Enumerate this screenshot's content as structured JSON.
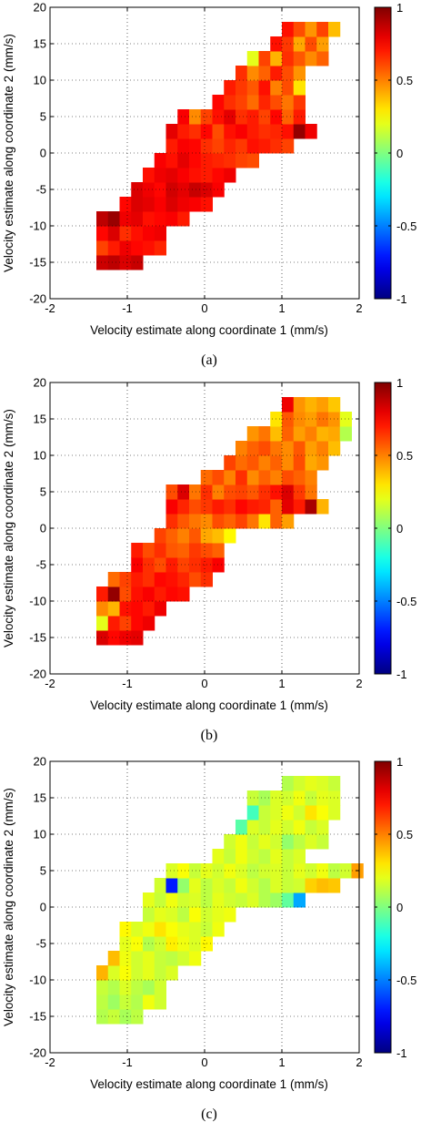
{
  "chart_data": [
    {
      "type": "heatmap",
      "panel_label": "(a)",
      "xlabel": "Velocity estimate along coordinate 1 (mm/s)",
      "ylabel": "Velocity estimate along coordinate 2 (mm/s)",
      "xlim": [
        -2,
        2
      ],
      "ylim": [
        -20,
        20
      ],
      "xticks": [
        "-2",
        "-1",
        "0",
        "1",
        "2"
      ],
      "yticks": [
        "-20",
        "-15",
        "-10",
        "-5",
        "0",
        "5",
        "10",
        "15",
        "20"
      ],
      "colorbar": {
        "colormap": "jet",
        "range": [
          -1,
          1
        ],
        "ticks": [
          "1",
          "0.5",
          "0",
          "-0.5",
          "-1"
        ]
      },
      "grid": true,
      "cell_width": 0.15,
      "cell_height": 2.0,
      "rows": [
        {
          "y": -15.0,
          "x_start": -1.4,
          "values": [
            0.85,
            0.88,
            0.82,
            0.86
          ]
        },
        {
          "y": -13.0,
          "x_start": -1.4,
          "values": [
            0.62,
            0.7,
            0.78,
            0.74,
            0.72,
            0.68
          ]
        },
        {
          "y": -11.0,
          "x_start": -1.4,
          "values": [
            0.74,
            0.82,
            0.66,
            0.72,
            0.76,
            0.78
          ]
        },
        {
          "y": -9.0,
          "x_start": -1.4,
          "values": [
            0.88,
            0.95,
            0.78,
            0.8,
            0.72,
            0.74,
            0.76,
            0.7
          ]
        },
        {
          "y": -7.0,
          "x_start": -1.1,
          "values": [
            0.74,
            0.82,
            0.8,
            0.76,
            0.82,
            0.78,
            0.76,
            0.72
          ]
        },
        {
          "y": -5.0,
          "x_start": -0.95,
          "values": [
            0.82,
            0.78,
            0.74,
            0.84,
            0.8,
            0.86,
            0.82,
            0.76
          ]
        },
        {
          "y": -3.0,
          "x_start": -0.8,
          "values": [
            0.72,
            0.78,
            0.8,
            0.76,
            0.72,
            0.7,
            0.74,
            0.78
          ]
        },
        {
          "y": -1.0,
          "x_start": -0.65,
          "values": [
            0.76,
            0.72,
            0.8,
            0.74,
            0.7,
            0.68,
            0.66,
            0.62,
            0.6
          ]
        },
        {
          "y": 1.0,
          "x_start": -0.5,
          "values": [
            0.7,
            0.76,
            0.74,
            0.66,
            0.62,
            0.68,
            0.64,
            0.72,
            0.7,
            0.66,
            0.62
          ]
        },
        {
          "y": 3.0,
          "x_start": -0.5,
          "values": [
            0.8,
            0.7,
            0.66,
            0.74,
            0.6,
            0.72,
            0.76,
            0.7,
            0.66,
            0.68,
            0.72,
            0.96,
            0.78
          ]
        },
        {
          "y": 5.0,
          "x_start": -0.35,
          "values": [
            0.76,
            0.48,
            0.62,
            0.72,
            0.8,
            0.66,
            0.7,
            0.62,
            0.74,
            0.56,
            0.7
          ]
        },
        {
          "y": 7.0,
          "x_start": 0.1,
          "values": [
            0.74,
            0.66,
            0.62,
            0.54,
            0.68,
            0.6,
            0.52,
            0.64
          ]
        },
        {
          "y": 9.0,
          "x_start": 0.25,
          "values": [
            0.7,
            0.64,
            0.58,
            0.72,
            0.5,
            0.6,
            0.3
          ]
        },
        {
          "y": 11.0,
          "x_start": 0.4,
          "values": [
            0.66,
            0.48,
            0.56,
            0.7,
            0.6,
            0.46
          ]
        },
        {
          "y": 13.0,
          "x_start": 0.55,
          "values": [
            0.2,
            0.62,
            0.4,
            0.66,
            0.58,
            0.48,
            0.56
          ]
        },
        {
          "y": 15.0,
          "x_start": 0.85,
          "values": [
            0.72,
            0.64,
            0.42,
            0.6,
            0.44
          ]
        },
        {
          "y": 17.0,
          "x_start": 1.0,
          "values": [
            0.72,
            0.6,
            0.46,
            0.62,
            0.38
          ]
        }
      ]
    },
    {
      "type": "heatmap",
      "panel_label": "(b)",
      "xlabel": "Velocity estimate along coordinate 1 (mm/s)",
      "ylabel": "Velocity estimate along coordinate 2 (mm/s)",
      "xlim": [
        -2,
        2
      ],
      "ylim": [
        -20,
        20
      ],
      "xticks": [
        "-2",
        "-1",
        "0",
        "1",
        "2"
      ],
      "yticks": [
        "-20",
        "-15",
        "-10",
        "-5",
        "0",
        "5",
        "10",
        "15",
        "20"
      ],
      "colorbar": {
        "colormap": "jet",
        "range": [
          -1,
          1
        ],
        "ticks": [
          "1",
          "0.5",
          "0",
          "-0.5",
          "-1"
        ]
      },
      "grid": true,
      "cell_width": 0.15,
      "cell_height": 2.0,
      "rows": [
        {
          "y": -15.0,
          "x_start": -1.4,
          "values": [
            0.82,
            0.74,
            0.78,
            0.8
          ]
        },
        {
          "y": -13.0,
          "x_start": -1.4,
          "values": [
            0.2,
            0.7,
            0.62,
            0.74,
            0.78
          ]
        },
        {
          "y": -11.0,
          "x_start": -1.4,
          "values": [
            0.48,
            0.4,
            0.72,
            0.74,
            0.7,
            0.78
          ]
        },
        {
          "y": -9.0,
          "x_start": -1.4,
          "values": [
            0.7,
            0.96,
            0.6,
            0.72,
            0.76,
            0.7,
            0.74,
            0.72
          ]
        },
        {
          "y": -7.0,
          "x_start": -1.25,
          "values": [
            0.54,
            0.62,
            0.7,
            0.66,
            0.74,
            0.72,
            0.68,
            0.6,
            0.66
          ]
        },
        {
          "y": -5.0,
          "x_start": -0.95,
          "values": [
            0.76,
            0.66,
            0.6,
            0.7,
            0.62,
            0.66,
            0.7,
            0.76
          ]
        },
        {
          "y": -3.0,
          "x_start": -0.95,
          "values": [
            0.7,
            0.6,
            0.66,
            0.58,
            0.56,
            0.64,
            0.6,
            0.56
          ]
        },
        {
          "y": -1.0,
          "x_start": -0.65,
          "values": [
            0.62,
            0.56,
            0.5,
            0.58,
            0.42,
            0.38,
            0.26
          ]
        },
        {
          "y": 1.0,
          "x_start": -0.5,
          "values": [
            0.66,
            0.58,
            0.52,
            0.48,
            0.6,
            0.56,
            0.62,
            0.52,
            0.3,
            0.56,
            0.44
          ]
        },
        {
          "y": 3.0,
          "x_start": -0.5,
          "values": [
            0.76,
            0.68,
            0.6,
            0.64,
            0.7,
            0.66,
            0.74,
            0.7,
            0.68,
            0.56,
            0.8,
            0.7,
            0.92,
            0.4
          ]
        },
        {
          "y": 5.0,
          "x_start": -0.5,
          "values": [
            0.6,
            0.82,
            0.52,
            0.66,
            0.5,
            0.6,
            0.62,
            0.58,
            0.66,
            0.72,
            0.82,
            0.64,
            0.52
          ]
        },
        {
          "y": 7.0,
          "x_start": -0.05,
          "values": [
            0.54,
            0.6,
            0.5,
            0.66,
            0.48,
            0.56,
            0.5,
            0.6,
            0.56,
            0.5
          ]
        },
        {
          "y": 9.0,
          "x_start": 0.25,
          "values": [
            0.62,
            0.54,
            0.58,
            0.5,
            0.56,
            0.48,
            0.6,
            0.42,
            0.46
          ]
        },
        {
          "y": 11.0,
          "x_start": 0.4,
          "values": [
            0.5,
            0.56,
            0.6,
            0.52,
            0.48,
            0.58,
            0.44,
            0.5,
            0.38
          ]
        },
        {
          "y": 13.0,
          "x_start": 0.55,
          "values": [
            0.46,
            0.52,
            0.38,
            0.56,
            0.44,
            0.5,
            0.4,
            0.42,
            0.1
          ]
        },
        {
          "y": 15.0,
          "x_start": 0.85,
          "values": [
            0.3,
            0.58,
            0.48,
            0.44,
            0.52,
            0.46,
            0.2
          ]
        },
        {
          "y": 17.0,
          "x_start": 1.0,
          "values": [
            0.78,
            0.46,
            0.4,
            0.44,
            0.36
          ]
        }
      ]
    },
    {
      "type": "heatmap",
      "panel_label": "(c)",
      "xlabel": "Velocity estimate along coordinate 1 (mm/s)",
      "ylabel": "Velocity estimate along coordinate 2 (mm/s)",
      "xlim": [
        -2,
        2
      ],
      "ylim": [
        -20,
        20
      ],
      "xticks": [
        "-2",
        "-1",
        "0",
        "1",
        "2"
      ],
      "yticks": [
        "-20",
        "-15",
        "-10",
        "-5",
        "0",
        "5",
        "10",
        "15",
        "20"
      ],
      "colorbar": {
        "colormap": "jet",
        "range": [
          -1,
          1
        ],
        "ticks": [
          "1",
          "0.5",
          "0",
          "-0.5",
          "-1"
        ]
      },
      "grid": true,
      "cell_width": 0.15,
      "cell_height": 2.0,
      "rows": [
        {
          "y": -15.0,
          "x_start": -1.4,
          "values": [
            0.1,
            0.14,
            0.08,
            0.12
          ]
        },
        {
          "y": -13.0,
          "x_start": -1.4,
          "values": [
            0.12,
            0.06,
            0.14,
            0.1,
            0.22,
            0.16
          ]
        },
        {
          "y": -11.0,
          "x_start": -1.4,
          "values": [
            0.14,
            0.1,
            0.18,
            0.12,
            0.08,
            0.16
          ]
        },
        {
          "y": -9.0,
          "x_start": -1.4,
          "values": [
            0.4,
            0.18,
            0.24,
            0.16,
            0.2,
            0.14,
            0.18
          ]
        },
        {
          "y": -7.0,
          "x_start": -1.25,
          "values": [
            0.38,
            0.22,
            0.16,
            0.2,
            0.14,
            0.12,
            0.16,
            0.22
          ]
        },
        {
          "y": -5.0,
          "x_start": -1.1,
          "values": [
            0.2,
            0.24,
            0.1,
            0.16,
            0.28,
            0.22,
            0.18,
            0.26
          ]
        },
        {
          "y": -3.0,
          "x_start": -1.1,
          "values": [
            0.26,
            0.18,
            0.22,
            0.3,
            0.24,
            0.2,
            0.18,
            0.14,
            0.22
          ]
        },
        {
          "y": -1.0,
          "x_start": -0.8,
          "values": [
            0.14,
            0.2,
            0.18,
            0.12,
            0.24,
            0.16,
            0.2,
            0.22
          ]
        },
        {
          "y": 1.0,
          "x_start": -0.8,
          "values": [
            0.2,
            0.14,
            0.22,
            0.16,
            0.18,
            0.12,
            0.2,
            0.16,
            0.14,
            0.18,
            0.1,
            0.06,
            -0.06,
            -0.42
          ]
        },
        {
          "y": 3.0,
          "x_start": -0.65,
          "values": [
            0.16,
            -0.7,
            0.04,
            0.2,
            0.12,
            0.18,
            0.14,
            0.22,
            0.16,
            0.1,
            0.18,
            0.14,
            0.16,
            0.34,
            0.38,
            0.36
          ]
        },
        {
          "y": 5.0,
          "x_start": -0.5,
          "values": [
            0.18,
            0.24,
            0.14,
            0.2,
            0.16,
            0.22,
            0.18,
            0.12,
            0.16,
            0.18,
            0.14,
            0.2,
            0.16,
            0.22,
            0.12,
            0.16,
            0.44
          ]
        },
        {
          "y": 7.0,
          "x_start": 0.1,
          "values": [
            0.2,
            0.14,
            0.22,
            0.16,
            0.12,
            0.2,
            0.14,
            0.18
          ]
        },
        {
          "y": 9.0,
          "x_start": 0.25,
          "values": [
            0.16,
            0.22,
            0.14,
            0.2,
            0.16,
            0.04,
            0.12,
            0.18,
            0.14
          ]
        },
        {
          "y": 11.0,
          "x_start": 0.4,
          "values": [
            -0.08,
            0.18,
            0.14,
            0.2,
            0.16,
            0.22,
            0.14,
            0.18
          ]
        },
        {
          "y": 13.0,
          "x_start": 0.55,
          "values": [
            -0.12,
            0.14,
            0.18,
            0.22,
            0.16,
            0.3,
            0.24,
            0.18
          ]
        },
        {
          "y": 15.0,
          "x_start": 0.55,
          "values": [
            0.14,
            0.08,
            0.18,
            0.16,
            0.22,
            0.14,
            0.2,
            0.18
          ]
        },
        {
          "y": 17.0,
          "x_start": 1.0,
          "values": [
            0.1,
            0.16,
            0.2,
            0.18,
            0.14
          ]
        }
      ]
    }
  ]
}
